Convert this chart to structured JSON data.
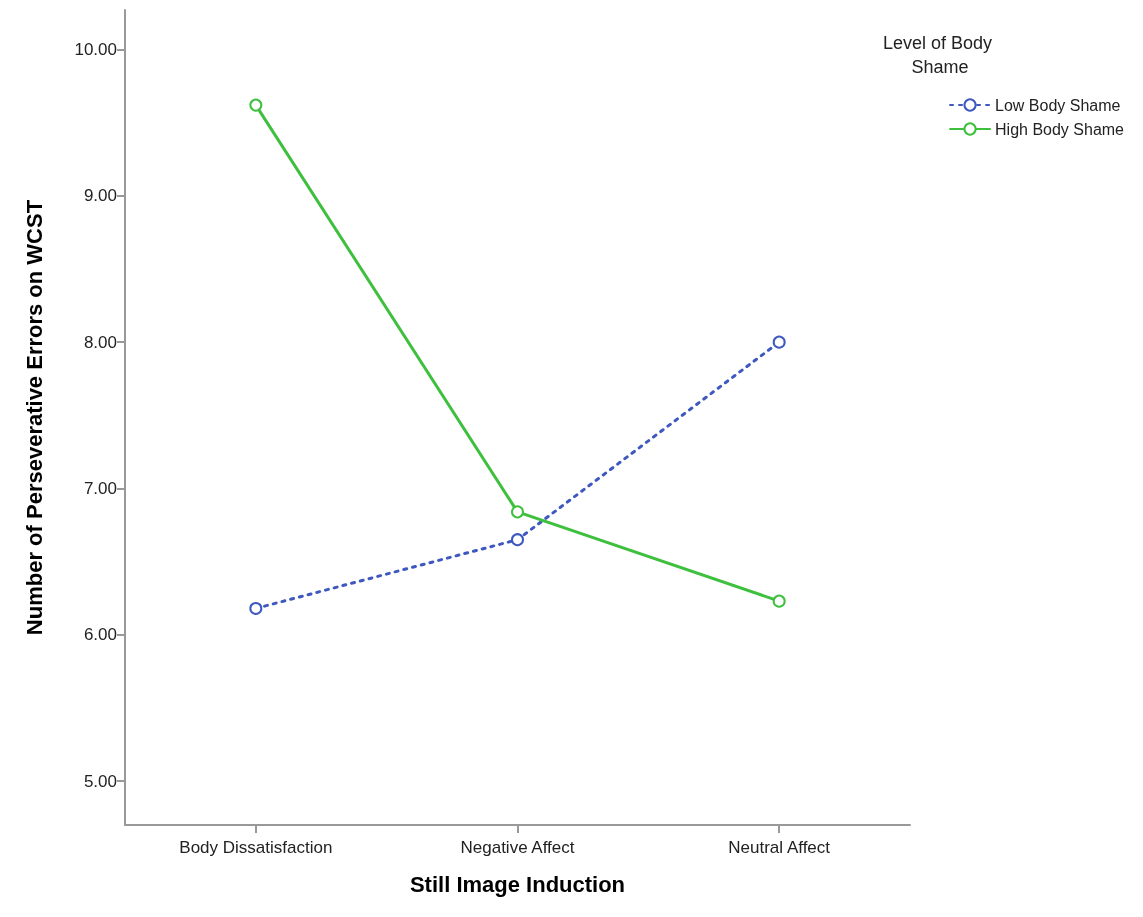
{
  "chart_data": {
    "type": "line",
    "xlabel": "Still Image Induction",
    "ylabel": "Number of Perseverative Errors on WCST",
    "legend_title": "Level of Body Shame",
    "categories": [
      "Body Dissatisfaction",
      "Negative Affect",
      "Neutral Affect"
    ],
    "series": [
      {
        "name": "Low Body Shame",
        "color": "#3e58c0",
        "values": [
          6.18,
          6.65,
          8.0
        ],
        "line_style": "dotted"
      },
      {
        "name": "High Body Shame",
        "color": "#3ec03e",
        "values": [
          9.62,
          6.84,
          6.23
        ],
        "line_style": "solid"
      }
    ],
    "ylim": [
      4.7,
      10.27
    ],
    "yticks": [
      {
        "value": 5,
        "label": "5.00"
      },
      {
        "value": 6,
        "label": "6.00"
      },
      {
        "value": 7,
        "label": "7.00"
      },
      {
        "value": 8,
        "label": "8.00"
      },
      {
        "value": 9,
        "label": "9.00"
      },
      {
        "value": 10,
        "label": "10.00"
      }
    ],
    "grid": false,
    "legend": "top right",
    "marker": "circle"
  }
}
